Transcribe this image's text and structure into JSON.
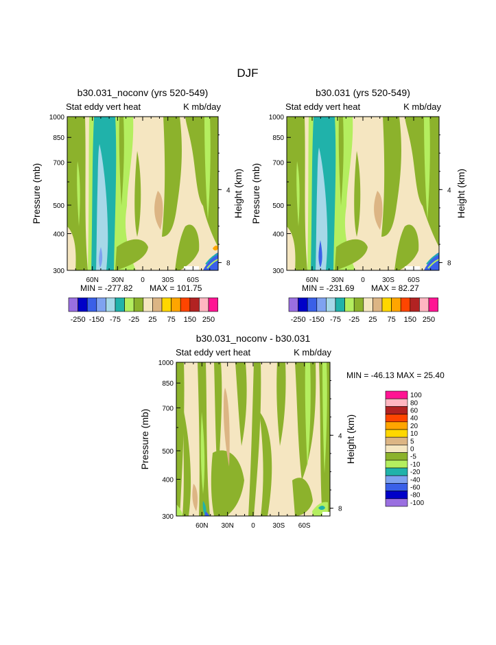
{
  "page": {
    "season": "DJF"
  },
  "colors": {
    "main": [
      "#9a6fe0",
      "#0000c8",
      "#3a60e8",
      "#7fa2f0",
      "#a6d8e8",
      "#20b2aa",
      "#b4ee5f",
      "#8cb22c",
      "#f5e6c1",
      "#dcb584",
      "#ffd700",
      "#ffa500",
      "#ff4500",
      "#b22222",
      "#ffb6c1",
      "#ff1493"
    ],
    "diff": [
      "#9a6fe0",
      "#0000c8",
      "#3a60e8",
      "#7fa2f0",
      "#20b2aa",
      "#b4ee5f",
      "#8cb22c",
      "#f5e6c1",
      "#dcb584",
      "#ffd700",
      "#ffa500",
      "#ff4500",
      "#b22222",
      "#ffb6c1",
      "#ff1493"
    ]
  },
  "chart_data": [
    {
      "type": "contour",
      "title": "b30.031_noconv (yrs 520-549)",
      "subtitle_left": "Stat eddy vert heat",
      "subtitle_right": "K mb/day",
      "ylabel": "Pressure (mb)",
      "ylabel_right": "Height (km)",
      "yticks": [
        300,
        400,
        500,
        700,
        850,
        1000
      ],
      "yticks_right": [
        8,
        4
      ],
      "xticks": [
        "60N",
        "30N",
        "0",
        "30S",
        "60S"
      ],
      "xlim": [
        90,
        -90
      ],
      "ylim": [
        1000,
        300
      ],
      "min_label": "MIN = -277.82",
      "max_label": "MAX = 101.75",
      "levels": [
        -250,
        -200,
        -150,
        -100,
        -75,
        -50,
        -25,
        -10,
        10,
        25,
        50,
        75,
        100,
        150,
        200,
        250
      ],
      "colorbar_labels": [
        "-250",
        "-150",
        "-75",
        "-25",
        "25",
        "75",
        "150",
        "250"
      ]
    },
    {
      "type": "contour",
      "title": "b30.031 (yrs 520-549)",
      "subtitle_left": "Stat eddy vert heat",
      "subtitle_right": "K mb/day",
      "ylabel": "Pressure (mb)",
      "ylabel_right": "Height (km)",
      "yticks": [
        300,
        400,
        500,
        700,
        850,
        1000
      ],
      "yticks_right": [
        8,
        4
      ],
      "xticks": [
        "60N",
        "30N",
        "0",
        "30S",
        "60S"
      ],
      "xlim": [
        90,
        -90
      ],
      "ylim": [
        1000,
        300
      ],
      "min_label": "MIN = -231.69",
      "max_label": "MAX =  82.27",
      "levels": [
        -250,
        -200,
        -150,
        -100,
        -75,
        -50,
        -25,
        -10,
        10,
        25,
        50,
        75,
        100,
        150,
        200,
        250
      ],
      "colorbar_labels": [
        "-250",
        "-150",
        "-75",
        "-25",
        "25",
        "75",
        "150",
        "250"
      ]
    },
    {
      "type": "contour",
      "title": "b30.031_noconv - b30.031",
      "subtitle_left": "Stat eddy vert heat",
      "subtitle_right": "K mb/day",
      "ylabel": "Pressure (mb)",
      "ylabel_right": "Height (km)",
      "yticks": [
        300,
        400,
        500,
        700,
        850,
        1000
      ],
      "yticks_right": [
        8,
        4
      ],
      "xticks": [
        "60N",
        "30N",
        "0",
        "30S",
        "60S"
      ],
      "xlim": [
        90,
        -90
      ],
      "ylim": [
        1000,
        300
      ],
      "minmax_label": "MIN = -46.13   MAX =  25.40",
      "levels": [
        -100,
        -80,
        -60,
        -40,
        -20,
        -10,
        -5,
        0,
        5,
        10,
        20,
        40,
        60,
        80,
        100
      ],
      "colorbar_labels": [
        "100",
        "80",
        "60",
        "40",
        "20",
        "10",
        "5",
        "0",
        "-5",
        "-10",
        "-20",
        "-40",
        "-60",
        "-80",
        "-100"
      ]
    }
  ]
}
